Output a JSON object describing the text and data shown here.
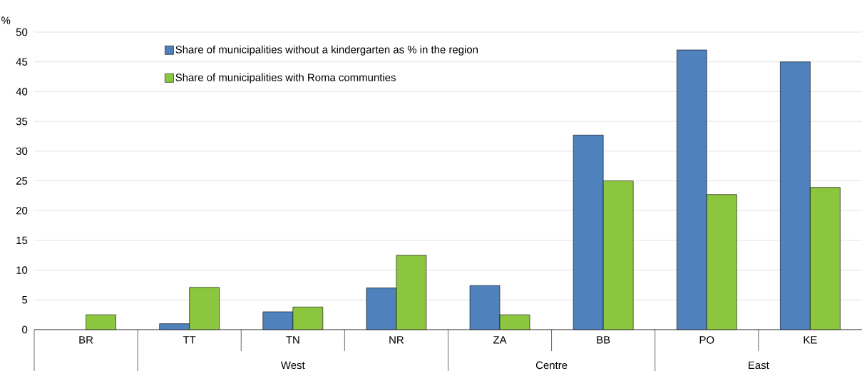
{
  "chart_data": {
    "type": "bar",
    "ylabel": "%",
    "categories": [
      "BR",
      "TT",
      "TN",
      "NR",
      "ZA",
      "BB",
      "PO",
      "KE"
    ],
    "series": [
      {
        "name": "Share of municipalities without a kindergarten as % in the region",
        "color": "#4f81bd",
        "values": [
          null,
          1.0,
          3.0,
          7.0,
          7.4,
          32.7,
          47.0,
          45.0
        ]
      },
      {
        "name": "Share of municipalities with Roma communties",
        "color": "#8cc63f",
        "values": [
          2.5,
          7.1,
          3.8,
          12.5,
          2.5,
          25.0,
          22.7,
          23.9
        ]
      }
    ],
    "annotations": [
      "West",
      "Centre",
      "East"
    ],
    "ylim": [
      0,
      50
    ],
    "yticks": [
      0,
      5,
      10,
      15,
      20,
      25,
      30,
      35,
      40,
      45,
      50
    ],
    "grid": "y",
    "legend": "top left"
  }
}
